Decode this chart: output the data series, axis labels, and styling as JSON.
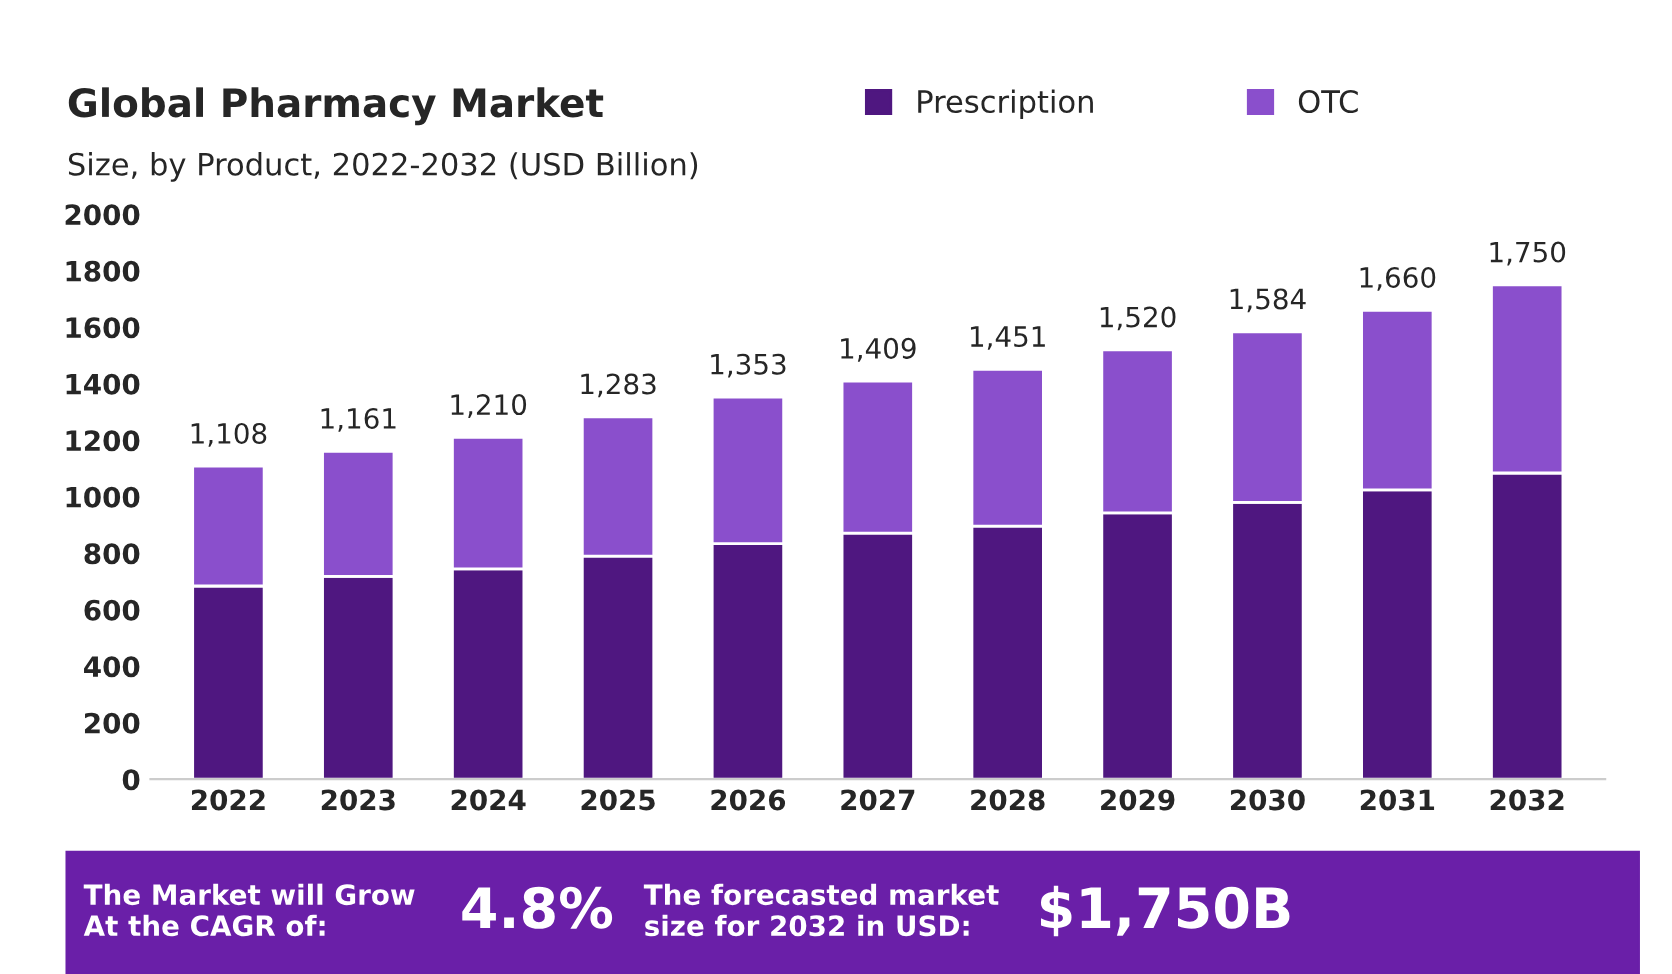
{
  "chart_data": {
    "type": "bar",
    "title": "Global Pharmacy Market",
    "subtitle": "Size, by Product, 2022-2032 (USD Billion)",
    "categories": [
      "2022",
      "2023",
      "2024",
      "2025",
      "2026",
      "2027",
      "2028",
      "2029",
      "2030",
      "2031",
      "2032"
    ],
    "series": [
      {
        "name": "Prescription",
        "color": "#4f1780",
        "values": [
          684,
          718,
          745,
          790,
          834,
          871,
          896,
          943,
          980,
          1024,
          1084
        ]
      },
      {
        "name": "OTC",
        "color": "#8a4fcc",
        "values": [
          424,
          443,
          465,
          493,
          519,
          538,
          555,
          577,
          604,
          636,
          666
        ]
      }
    ],
    "stacked": true,
    "totals": [
      "1,108",
      "1,161",
      "1,210",
      "1,283",
      "1,353",
      "1,409",
      "1,451",
      "1,520",
      "1,584",
      "1,660",
      "1,750"
    ],
    "ylim": [
      0,
      2000
    ],
    "yticks": [
      0,
      200,
      400,
      600,
      800,
      1000,
      1200,
      1400,
      1600,
      1800,
      2000
    ],
    "grid": false,
    "legend": "top right",
    "annotations": [
      "The Market will Grow At the CAGR of:",
      "4.8%",
      "The forecasted market size for 2032 in USD:",
      "$1,750B"
    ]
  }
}
